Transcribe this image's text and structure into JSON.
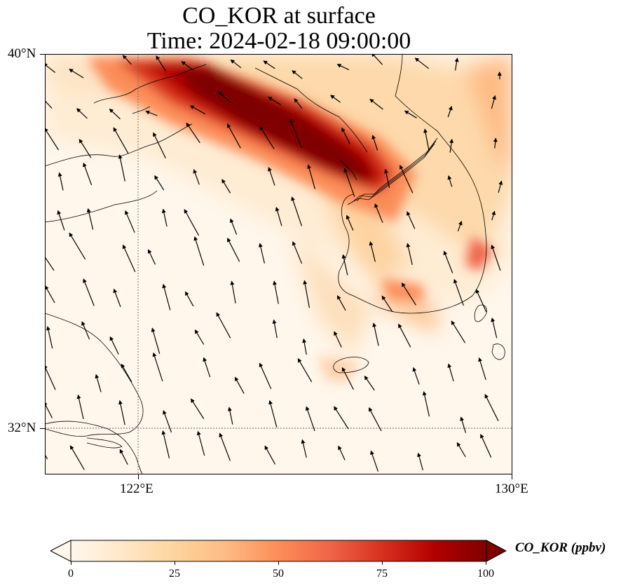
{
  "title": {
    "line1": "CO_KOR at surface",
    "line2": "Time: 2024-02-18 09:00:00"
  },
  "map": {
    "extent": {
      "lon": [
        120,
        130
      ],
      "lat": [
        31,
        40
      ]
    },
    "lat_ticks": [
      {
        "value": 40,
        "label": "40°N"
      },
      {
        "value": 32,
        "label": "32°N"
      }
    ],
    "lon_ticks": [
      {
        "value": 122,
        "label": "122°E"
      },
      {
        "value": 130,
        "label": "130°E"
      }
    ],
    "gridlines": {
      "lon": [
        122
      ],
      "lat": [
        32
      ],
      "style": "dotted gray"
    },
    "field": "CO_KOR",
    "units": "ppbv",
    "overlay": "wind vectors (arrows)"
  },
  "colorbar": {
    "label": "CO_KOR (ppbv)",
    "min": 0,
    "max": 100,
    "extend": "both",
    "colormap": "OrRd",
    "ticks": [
      "0",
      "25",
      "50",
      "75",
      "100"
    ],
    "colors": [
      "#fff7ec",
      "#fee8c8",
      "#fdd49e",
      "#fdbb84",
      "#fc8d59",
      "#ef6548",
      "#d7301f",
      "#b30000",
      "#7f0000"
    ]
  }
}
